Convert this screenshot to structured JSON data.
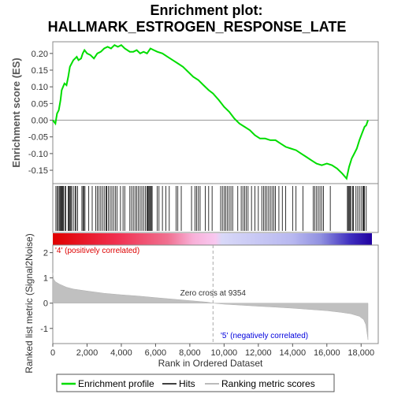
{
  "chart_data": {
    "type": "line",
    "title": "Enrichment plot:",
    "subtitle": "HALLMARK_ESTROGEN_RESPONSE_LATE",
    "es_panel": {
      "ylabel": "Enrichment score (ES)",
      "ylim": [
        -0.19,
        0.235
      ],
      "yticks": [
        -0.15,
        -0.1,
        -0.05,
        0.0,
        0.05,
        0.1,
        0.15,
        0.2
      ],
      "ytick_labels": [
        "-0.15",
        "-0.10",
        "-0.05",
        "0.00",
        "0.05",
        "0.10",
        "0.15",
        "0.20"
      ],
      "line_color": "#00dd00",
      "points": [
        [
          0,
          0.0
        ],
        [
          150,
          -0.01
        ],
        [
          250,
          0.02
        ],
        [
          350,
          0.03
        ],
        [
          450,
          0.06
        ],
        [
          520,
          0.09
        ],
        [
          600,
          0.1
        ],
        [
          680,
          0.11
        ],
        [
          800,
          0.105
        ],
        [
          900,
          0.13
        ],
        [
          1000,
          0.16
        ],
        [
          1100,
          0.17
        ],
        [
          1200,
          0.18
        ],
        [
          1300,
          0.185
        ],
        [
          1400,
          0.19
        ],
        [
          1500,
          0.18
        ],
        [
          1650,
          0.185
        ],
        [
          1750,
          0.2
        ],
        [
          1850,
          0.21
        ],
        [
          2000,
          0.2
        ],
        [
          2200,
          0.195
        ],
        [
          2400,
          0.185
        ],
        [
          2600,
          0.2
        ],
        [
          2800,
          0.205
        ],
        [
          3000,
          0.215
        ],
        [
          3200,
          0.22
        ],
        [
          3400,
          0.215
        ],
        [
          3600,
          0.225
        ],
        [
          3800,
          0.22
        ],
        [
          4000,
          0.225
        ],
        [
          4200,
          0.215
        ],
        [
          4500,
          0.205
        ],
        [
          4700,
          0.205
        ],
        [
          4900,
          0.21
        ],
        [
          5100,
          0.2
        ],
        [
          5300,
          0.205
        ],
        [
          5500,
          0.2
        ],
        [
          5700,
          0.215
        ],
        [
          5900,
          0.21
        ],
        [
          6100,
          0.205
        ],
        [
          6400,
          0.2
        ],
        [
          6700,
          0.19
        ],
        [
          7000,
          0.18
        ],
        [
          7300,
          0.17
        ],
        [
          7600,
          0.16
        ],
        [
          7900,
          0.145
        ],
        [
          8200,
          0.13
        ],
        [
          8500,
          0.12
        ],
        [
          8800,
          0.105
        ],
        [
          9100,
          0.09
        ],
        [
          9354,
          0.08
        ],
        [
          9700,
          0.06
        ],
        [
          10000,
          0.04
        ],
        [
          10300,
          0.025
        ],
        [
          10600,
          0.005
        ],
        [
          10900,
          -0.01
        ],
        [
          11200,
          -0.02
        ],
        [
          11500,
          -0.03
        ],
        [
          11800,
          -0.045
        ],
        [
          12100,
          -0.055
        ],
        [
          12400,
          -0.055
        ],
        [
          12700,
          -0.06
        ],
        [
          13000,
          -0.06
        ],
        [
          13300,
          -0.07
        ],
        [
          13600,
          -0.08
        ],
        [
          13900,
          -0.085
        ],
        [
          14200,
          -0.09
        ],
        [
          14500,
          -0.1
        ],
        [
          14800,
          -0.11
        ],
        [
          15100,
          -0.12
        ],
        [
          15400,
          -0.13
        ],
        [
          15700,
          -0.135
        ],
        [
          16000,
          -0.13
        ],
        [
          16300,
          -0.135
        ],
        [
          16600,
          -0.145
        ],
        [
          16900,
          -0.16
        ],
        [
          17150,
          -0.175
        ],
        [
          17300,
          -0.14
        ],
        [
          17450,
          -0.115
        ],
        [
          17600,
          -0.1
        ],
        [
          17750,
          -0.085
        ],
        [
          17900,
          -0.06
        ],
        [
          18050,
          -0.04
        ],
        [
          18200,
          -0.02
        ],
        [
          18300,
          -0.015
        ],
        [
          18400,
          0.0
        ]
      ]
    },
    "hits_panel": {
      "hits": [
        180,
        260,
        320,
        380,
        430,
        480,
        530,
        580,
        620,
        700,
        760,
        900,
        950,
        1000,
        1050,
        1100,
        1200,
        1300,
        1350,
        1450,
        1700,
        1760,
        1820,
        1880,
        2100,
        2300,
        2500,
        2600,
        2700,
        2800,
        2900,
        3000,
        3100,
        3150,
        3250,
        3350,
        3450,
        3550,
        3650,
        3750,
        3950,
        4100,
        4200,
        4500,
        4600,
        4700,
        4800,
        4900,
        5000,
        5100,
        5200,
        5300,
        5400,
        5500,
        5550,
        5600,
        5650,
        5700,
        5750,
        5800,
        6100,
        6200,
        6400,
        6600,
        6800,
        7200,
        7300,
        7500,
        8100,
        8300,
        8400,
        8500,
        8600,
        8900,
        9100,
        9300,
        9800,
        9900,
        10000,
        10100,
        10200,
        10300,
        10400,
        10500,
        10800,
        11000,
        11100,
        11200,
        11300,
        11400,
        11600,
        11800,
        12000,
        12200,
        12300,
        12400,
        12500,
        12600,
        12700,
        12800,
        12900,
        13000,
        13200,
        13400,
        13600,
        14000,
        14200,
        14600,
        15200,
        15300,
        15400,
        15500,
        15600,
        15700,
        15800,
        16200,
        17200,
        17250,
        17300,
        17350,
        17400,
        17500,
        17550,
        17700,
        17800,
        17900,
        18000,
        18100,
        18150,
        18200,
        18300
      ]
    },
    "rank_panel": {
      "xlabel": "Rank in Ordered Dataset",
      "ylabel": "Ranked list metric (Signal2Noise)",
      "xlim": [
        0,
        19000
      ],
      "ylim": [
        -1.6,
        2.3
      ],
      "xticks": [
        0,
        2000,
        4000,
        6000,
        8000,
        10000,
        12000,
        14000,
        16000,
        18000
      ],
      "xtick_labels": [
        "0",
        "2,000",
        "4,000",
        "6,000",
        "8,000",
        "10,000",
        "12,000",
        "14,000",
        "16,000",
        "18,000"
      ],
      "yticks": [
        -1,
        0,
        1,
        2
      ],
      "ytick_labels": [
        "-1",
        "0",
        "1",
        "2"
      ],
      "n_genes": 18400,
      "metric_profile": [
        [
          0,
          1.2
        ],
        [
          50,
          0.95
        ],
        [
          150,
          0.85
        ],
        [
          400,
          0.75
        ],
        [
          800,
          0.63
        ],
        [
          1200,
          0.56
        ],
        [
          2000,
          0.48
        ],
        [
          3000,
          0.39
        ],
        [
          4000,
          0.33
        ],
        [
          5000,
          0.28
        ],
        [
          6000,
          0.22
        ],
        [
          7000,
          0.16
        ],
        [
          8000,
          0.1
        ],
        [
          9000,
          0.04
        ],
        [
          9354,
          0.0
        ],
        [
          10000,
          -0.04
        ],
        [
          11000,
          -0.08
        ],
        [
          12000,
          -0.12
        ],
        [
          13000,
          -0.16
        ],
        [
          14000,
          -0.2
        ],
        [
          15000,
          -0.25
        ],
        [
          16000,
          -0.3
        ],
        [
          16800,
          -0.36
        ],
        [
          17400,
          -0.42
        ],
        [
          17900,
          -0.52
        ],
        [
          18150,
          -0.65
        ],
        [
          18280,
          -0.85
        ],
        [
          18400,
          -1.45
        ]
      ],
      "zero_cross": 9354,
      "zero_cross_label": "Zero cross at 9354",
      "pos_label": "'4' (positively correlated)",
      "neg_label": "'5' (negatively correlated)",
      "pos_label_color": "#dd0000",
      "neg_label_color": "#0000dd"
    },
    "legend": {
      "placement": "bottom",
      "items": [
        {
          "label": "Enrichment profile",
          "color": "#00dd00",
          "style": "line"
        },
        {
          "label": "Hits",
          "color": "#000000",
          "style": "line"
        },
        {
          "label": "Ranking metric scores",
          "color": "#bbbbbb",
          "style": "line"
        }
      ]
    }
  }
}
